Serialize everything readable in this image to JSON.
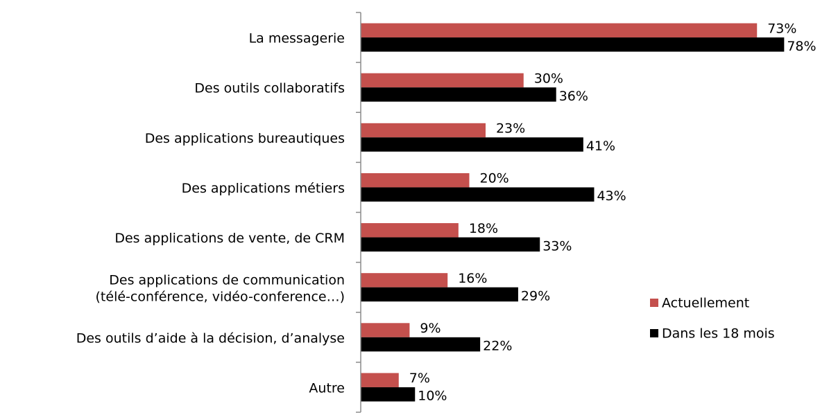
{
  "chart_data": {
    "type": "barh",
    "categories": [
      "La messagerie",
      "Des outils collaboratifs",
      "Des applications bureautiques",
      "Des applications métiers",
      "Des applications de vente, de CRM",
      "Des applications de communication\n(télé-conférence, vidéo-conference…)",
      "Des outils d’aide à la décision, d’analyse",
      "Autre"
    ],
    "series": [
      {
        "name": "Actuellement",
        "color": "#c4504d",
        "values": [
          73,
          30,
          23,
          20,
          18,
          16,
          9,
          7
        ],
        "value_labels": [
          "73%",
          "30%",
          "23%",
          "20%",
          "18%",
          "16%",
          "9%",
          "7%"
        ]
      },
      {
        "name": "Dans les 18 mois",
        "color": "#000000",
        "values": [
          78,
          36,
          41,
          43,
          33,
          29,
          22,
          10
        ],
        "value_labels": [
          "78%",
          "36%",
          "41%",
          "43%",
          "33%",
          "29%",
          "22%",
          "10%"
        ]
      }
    ],
    "xlim": [
      0,
      80
    ],
    "legend": "right"
  }
}
